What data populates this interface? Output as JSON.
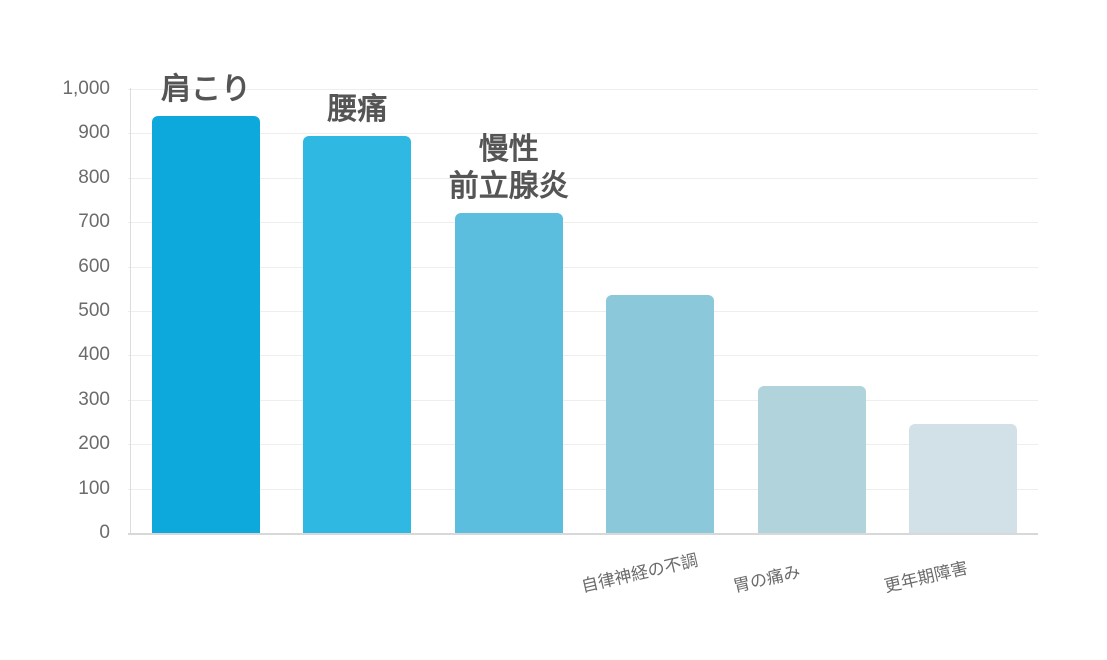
{
  "chart_data": {
    "type": "bar",
    "title": "",
    "xlabel": "",
    "ylabel": "",
    "ylim": [
      0,
      1000
    ],
    "yticks": [
      0,
      100,
      200,
      300,
      400,
      500,
      600,
      700,
      800,
      900,
      1000
    ],
    "ytick_labels": [
      "0",
      "100",
      "200",
      "300",
      "400",
      "500",
      "600",
      "700",
      "800",
      "900",
      "1,000"
    ],
    "grid": true,
    "legend": "none",
    "categories": [
      "肩こり",
      "腰痛",
      "慢性前立腺炎",
      "自律神経の不調",
      "胃の痛み",
      "更年期障害"
    ],
    "values": [
      940,
      895,
      720,
      535,
      330,
      245
    ],
    "colors": [
      "#0ea9dc",
      "#2eb8e2",
      "#5cbede",
      "#8ac8da",
      "#b0d3dc",
      "#d2e1e7"
    ],
    "annotations": [
      {
        "category": "肩こり",
        "text": "肩こり"
      },
      {
        "category": "腰痛",
        "text": "腰痛"
      },
      {
        "category": "慢性前立腺炎",
        "text": "慢性\n前立腺炎"
      }
    ],
    "axis_labels_shown": [
      "",
      "",
      "",
      "自律神経の不調",
      "胃の痛み",
      "更年期障害"
    ]
  }
}
